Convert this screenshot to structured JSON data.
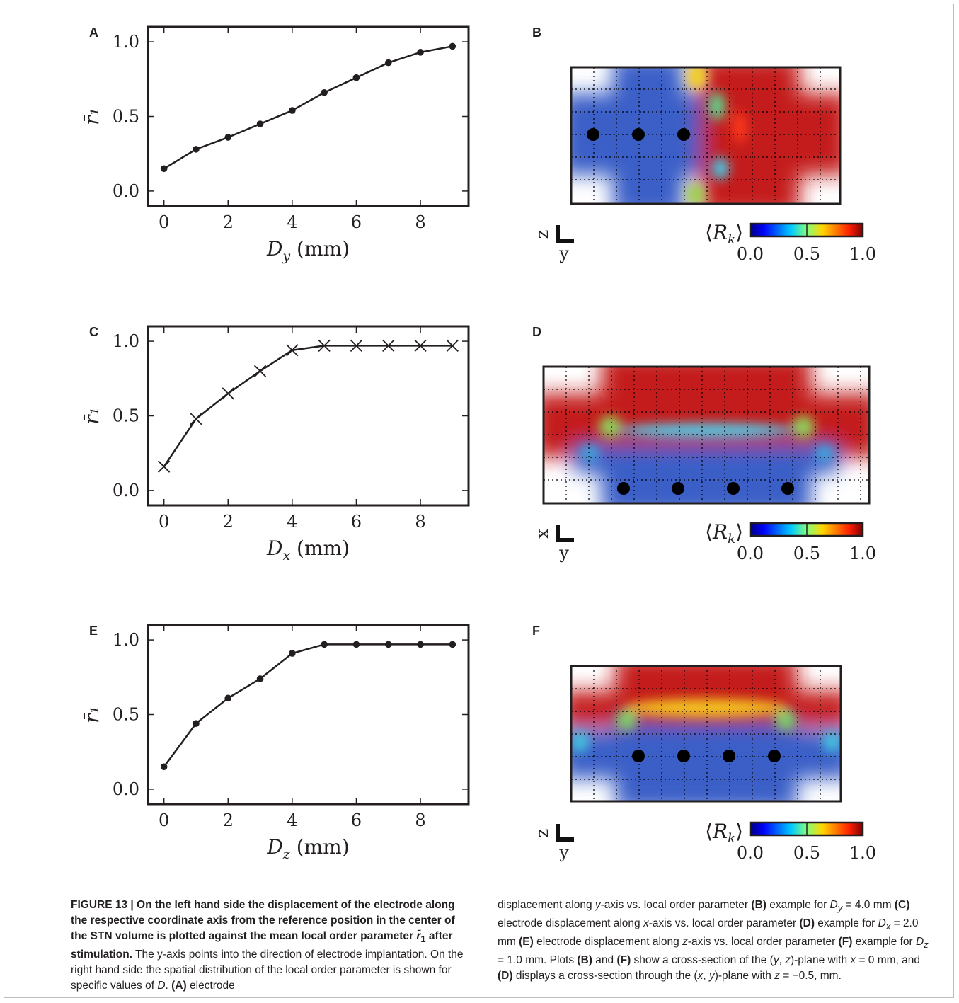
{
  "charts": [
    {
      "panel_label": "A",
      "ylabel": "r̄₁",
      "xlabel_main": "D",
      "xlabel_sub": "y",
      "xlabel_unit": "(mm)",
      "marker": "dot"
    },
    {
      "panel_label": "C",
      "ylabel": "r̄₁",
      "xlabel_main": "D",
      "xlabel_sub": "x",
      "xlabel_unit": "(mm)",
      "marker": "cross"
    },
    {
      "panel_label": "E",
      "ylabel": "r̄₁",
      "xlabel_main": "D",
      "xlabel_sub": "z",
      "xlabel_unit": "(mm)",
      "marker": "dot"
    }
  ],
  "chart_data": [
    {
      "type": "line",
      "x": [
        0,
        1,
        2,
        3,
        4,
        5,
        6,
        7,
        8,
        9
      ],
      "y": [
        0.15,
        0.28,
        0.36,
        0.45,
        0.54,
        0.66,
        0.76,
        0.86,
        0.93,
        0.97
      ],
      "xticks": [
        "0",
        "2",
        "4",
        "6",
        "8"
      ],
      "yticks": [
        "0.0",
        "0.5",
        "1.0"
      ],
      "xlim": [
        -0.5,
        9.5
      ],
      "ylim": [
        -0.1,
        1.1
      ],
      "xlabel": "D_y (mm)",
      "ylabel": "r̄₁"
    },
    {
      "type": "line",
      "x": [
        0,
        1,
        2,
        3,
        4,
        5,
        6,
        7,
        8,
        9
      ],
      "y": [
        0.16,
        0.48,
        0.65,
        0.8,
        0.94,
        0.97,
        0.97,
        0.97,
        0.97,
        0.97
      ],
      "xticks": [
        "0",
        "2",
        "4",
        "6",
        "8"
      ],
      "yticks": [
        "0.0",
        "0.5",
        "1.0"
      ],
      "xlim": [
        -0.5,
        9.5
      ],
      "ylim": [
        -0.1,
        1.1
      ],
      "xlabel": "D_x (mm)",
      "ylabel": "r̄₁"
    },
    {
      "type": "line",
      "x": [
        0,
        1,
        2,
        3,
        4,
        5,
        6,
        7,
        8,
        9
      ],
      "y": [
        0.15,
        0.44,
        0.61,
        0.74,
        0.91,
        0.97,
        0.97,
        0.97,
        0.97,
        0.97
      ],
      "xticks": [
        "0",
        "2",
        "4",
        "6",
        "8"
      ],
      "yticks": [
        "0.0",
        "0.5",
        "1.0"
      ],
      "xlim": [
        -0.5,
        9.5
      ],
      "ylim": [
        -0.1,
        1.1
      ],
      "xlabel": "D_z (mm)",
      "ylabel": "r̄₁"
    },
    {
      "type": "heatmap",
      "panel_label": "B",
      "plane": "(y, z)",
      "axis_vertical": "z",
      "axis_horizontal": "y",
      "colorbar_label": "⟨R_k⟩",
      "colorbar_ticks": [
        "0.0",
        "0.5",
        "1.0"
      ],
      "colormap": "jet",
      "electrode_count": 3
    },
    {
      "type": "heatmap",
      "panel_label": "D",
      "plane": "(x, y)",
      "axis_vertical": "x",
      "axis_horizontal": "y",
      "colorbar_label": "⟨R_k⟩",
      "colorbar_ticks": [
        "0.0",
        "0.5",
        "1.0"
      ],
      "colormap": "jet",
      "electrode_count": 4
    },
    {
      "type": "heatmap",
      "panel_label": "F",
      "plane": "(y, z)",
      "axis_vertical": "z",
      "axis_horizontal": "y",
      "colorbar_label": "⟨R_k⟩",
      "colorbar_ticks": [
        "0.0",
        "0.5",
        "1.0"
      ],
      "colormap": "jet",
      "electrode_count": 4
    }
  ],
  "colors": {
    "low": "#3a5fc7",
    "high": "#c0141c",
    "line": "#231f20"
  },
  "caption": {
    "left": "<b>FIGURE 13 | On the left hand side the displacement of the electrode along the respective coordinate axis from the reference position in the center of the STN volume is plotted against the mean local order parameter <i>r̄</i><sub>1</sub> after stimulation.</b> The y-axis points into the direction of electrode implantation. On the right hand side the spatial distribution of the local order parameter is shown for specific values of <i>D</i>. <b>(A)</b> electrode",
    "right": "displacement along <i>y</i>-axis vs. local order parameter <b>(B)</b> example for <i>D<sub>y</sub></i> = 4.0 mm <b>(C)</b> electrode displacement along <i>x</i>-axis vs. local order parameter <b>(D)</b> example for <i>D<sub>x</sub></i> = 2.0 mm <b>(E)</b> electrode displacement along <i>z</i>-axis vs. local order parameter <b>(F)</b> example for <i>D<sub>z</sub></i> = 1.0 mm. Plots <b>(B)</b> and <b>(F)</b> show a cross-section of the (<i>y</i>, <i>z</i>)-plane with <i>x</i> = 0 mm, and <b>(D)</b> displays a cross-section through the (<i>x</i>, <i>y</i>)-plane with <i>z</i> = −0.5, mm."
  }
}
